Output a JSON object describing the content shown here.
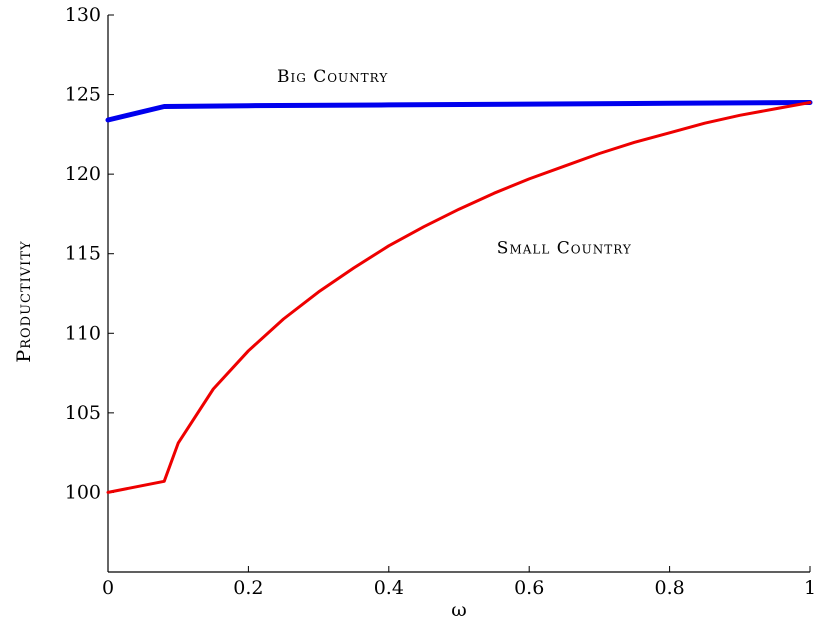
{
  "chart_data": {
    "type": "line",
    "xlabel": "ω",
    "ylabel": "Productivity",
    "xlim": [
      0,
      1
    ],
    "ylim": [
      95,
      130
    ],
    "x_ticks": [
      "0",
      "0.2",
      "0.4",
      "0.6",
      "0.8",
      "1"
    ],
    "y_ticks": [
      "100",
      "105",
      "110",
      "115",
      "120",
      "125",
      "130"
    ],
    "grid": false,
    "series": [
      {
        "name": "Big Country",
        "color": "#0000ee",
        "x": [
          0,
          0.08,
          0.2,
          0.4,
          0.6,
          0.8,
          1.0
        ],
        "y": [
          123.4,
          124.25,
          124.3,
          124.35,
          124.4,
          124.45,
          124.5
        ]
      },
      {
        "name": "Small Country",
        "color": "#ee0000",
        "x": [
          0,
          0.08,
          0.1,
          0.15,
          0.2,
          0.25,
          0.3,
          0.35,
          0.4,
          0.45,
          0.5,
          0.55,
          0.6,
          0.65,
          0.7,
          0.75,
          0.8,
          0.85,
          0.9,
          0.95,
          1.0
        ],
        "y": [
          100.0,
          100.7,
          103.1,
          106.5,
          108.9,
          110.9,
          112.6,
          114.1,
          115.5,
          116.7,
          117.8,
          118.8,
          119.7,
          120.5,
          121.3,
          122.0,
          122.6,
          123.2,
          123.7,
          124.1,
          124.5
        ]
      }
    ],
    "annotations": [
      {
        "text": "Big Country",
        "x": 0.32,
        "y": 125.8
      },
      {
        "text": "Small Country",
        "x": 0.65,
        "y": 115.0
      }
    ]
  }
}
